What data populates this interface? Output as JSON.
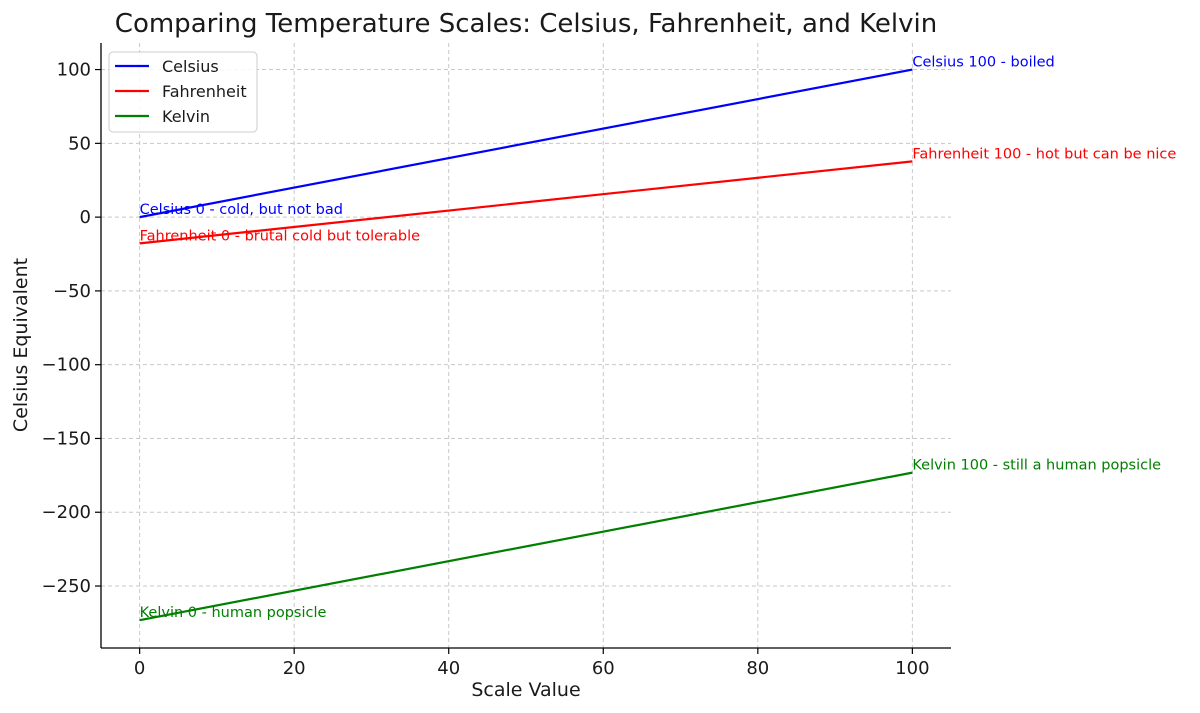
{
  "chart_data": {
    "type": "line",
    "title": "Comparing Temperature Scales: Celsius, Fahrenheit, and Kelvin",
    "xlabel": "Scale Value",
    "ylabel": "Celsius Equivalent",
    "xlim": [
      -5,
      105
    ],
    "ylim": [
      -292,
      118
    ],
    "xticks": [
      0,
      20,
      40,
      60,
      80,
      100
    ],
    "xtick_labels": [
      "0",
      "20",
      "40",
      "60",
      "80",
      "100"
    ],
    "yticks": [
      100,
      50,
      0,
      -50,
      -100,
      -150,
      -200,
      -250
    ],
    "ytick_labels": [
      "100",
      "50",
      "0",
      "−50",
      "−100",
      "−150",
      "−200",
      "−250"
    ],
    "grid": true,
    "legend_position": "top-left",
    "series": [
      {
        "name": "Celsius",
        "color": "#0000ff",
        "x": [
          0,
          100
        ],
        "y": [
          0,
          100
        ]
      },
      {
        "name": "Fahrenheit",
        "color": "#ff0000",
        "x": [
          0,
          100
        ],
        "y": [
          -17.78,
          37.78
        ]
      },
      {
        "name": "Kelvin",
        "color": "#007f00",
        "x": [
          0,
          100
        ],
        "y": [
          -273.15,
          -173.15
        ]
      }
    ],
    "annotations": [
      {
        "text": "Celsius 0 - cold, but not bad",
        "x": 0,
        "y": 0,
        "color": "#0000ff"
      },
      {
        "text": "Celsius 100 - boiled",
        "x": 100,
        "y": 100,
        "color": "#0000ff"
      },
      {
        "text": "Fahrenheit 0 - brutal cold but tolerable",
        "x": 0,
        "y": -17.78,
        "color": "#ff0000"
      },
      {
        "text": "Fahrenheit 100 - hot but can be nice",
        "x": 100,
        "y": 37.78,
        "color": "#ff0000"
      },
      {
        "text": "Kelvin 0 - human popsicle",
        "x": 0,
        "y": -273.15,
        "color": "#007f00"
      },
      {
        "text": "Kelvin 100 - still a human popsicle",
        "x": 100,
        "y": -173.15,
        "color": "#007f00"
      }
    ]
  }
}
